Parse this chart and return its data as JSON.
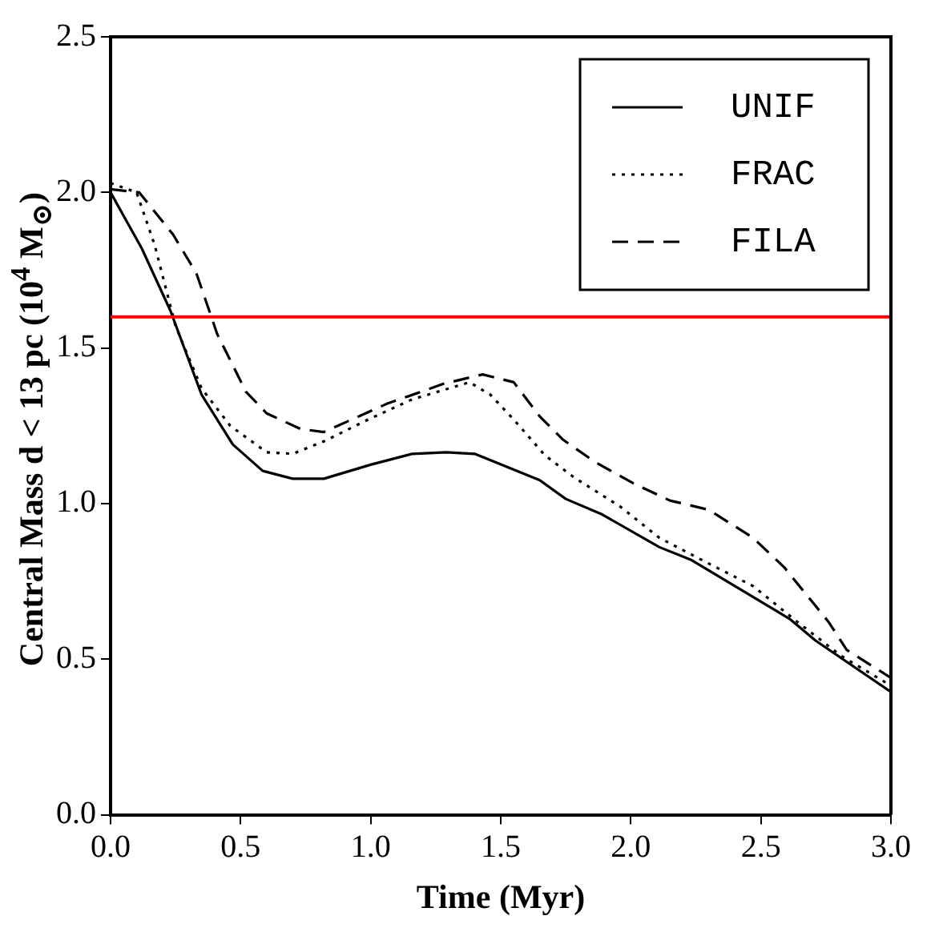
{
  "chart_data": {
    "type": "line",
    "xlabel": "Time (Myr)",
    "ylabel": "Central Mass d < 13 pc (10$^{4}$ M$_{⊙}$)",
    "xlim": [
      0,
      3
    ],
    "xticks": [
      {
        "value": 0,
        "label": "0.0"
      },
      0.5,
      {
        "value": 1,
        "label": "1.0"
      },
      1.5,
      {
        "value": 2,
        "label": "2.0"
      },
      2.5,
      {
        "value": 3,
        "label": "3.0"
      }
    ],
    "ylim": [
      0,
      2.5
    ],
    "yticks": [
      {
        "value": 0,
        "label": "0.0"
      },
      0.5,
      {
        "value": 1,
        "label": "1.0"
      },
      1.5,
      {
        "value": 2,
        "label": "2.0"
      },
      2.5
    ],
    "grid": false,
    "legend": "top right",
    "marker": "none",
    "ref_lines": [
      {
        "axis": "y",
        "value": 1.6,
        "color": "#ff0000"
      }
    ],
    "series": [
      {
        "name": "UNIF",
        "color": "#000000",
        "line_style": "solid",
        "x": [
          0,
          0.12,
          0.23,
          0.35,
          0.47,
          0.585,
          0.7,
          0.82,
          1.0,
          1.16,
          1.29,
          1.4,
          1.65,
          1.75,
          1.89,
          2.11,
          2.23,
          2.46,
          2.61,
          2.71,
          3.0
        ],
        "values": [
          2.0,
          1.82,
          1.62,
          1.35,
          1.19,
          1.105,
          1.08,
          1.08,
          1.125,
          1.16,
          1.165,
          1.16,
          1.075,
          1.015,
          0.965,
          0.86,
          0.82,
          0.705,
          0.63,
          0.56,
          0.395
        ]
      },
      {
        "name": "FRAC",
        "color": "#000000",
        "line_style": "dotted",
        "x": [
          0,
          0.1,
          0.17,
          0.25,
          0.35,
          0.46,
          0.6,
          0.7,
          0.82,
          0.99,
          1.16,
          1.38,
          1.46,
          1.55,
          1.67,
          1.78,
          1.96,
          2.11,
          2.27,
          2.47,
          2.64,
          2.81,
          3.0
        ],
        "values": [
          2.03,
          2.0,
          1.83,
          1.57,
          1.37,
          1.25,
          1.165,
          1.16,
          1.2,
          1.27,
          1.335,
          1.39,
          1.35,
          1.27,
          1.155,
          1.085,
          0.99,
          0.89,
          0.82,
          0.735,
          0.62,
          0.51,
          0.415
        ]
      },
      {
        "name": "FILA",
        "color": "#000000",
        "line_style": "dashed",
        "x": [
          0,
          0.11,
          0.24,
          0.33,
          0.41,
          0.52,
          0.6,
          0.73,
          0.82,
          1.06,
          1.28,
          1.43,
          1.55,
          1.65,
          1.74,
          1.86,
          2.01,
          2.15,
          2.3,
          2.47,
          2.59,
          2.76,
          2.83,
          3.0
        ],
        "values": [
          2.01,
          2.0,
          1.865,
          1.74,
          1.545,
          1.36,
          1.29,
          1.24,
          1.23,
          1.32,
          1.385,
          1.415,
          1.39,
          1.28,
          1.205,
          1.135,
          1.065,
          1.01,
          0.98,
          0.89,
          0.795,
          0.62,
          0.53,
          0.44
        ]
      }
    ]
  }
}
